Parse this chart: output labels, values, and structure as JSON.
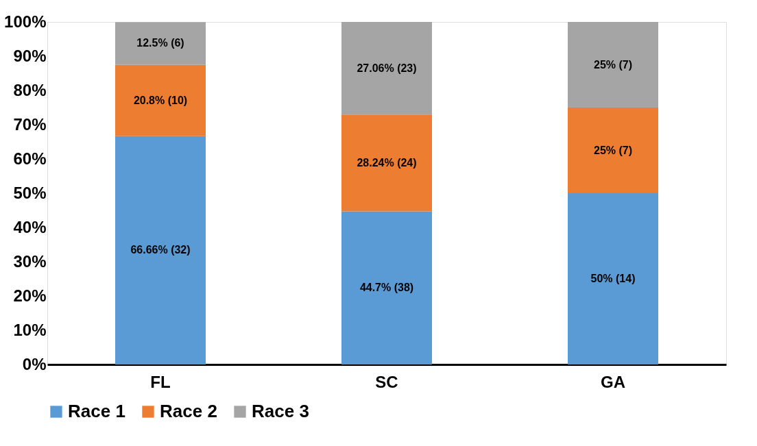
{
  "chart_data": {
    "type": "bar",
    "stacked": true,
    "categories": [
      "FL",
      "SC",
      "GA"
    ],
    "series": [
      {
        "name": "Race 1",
        "color": "#5b9bd5",
        "values": [
          66.66,
          44.7,
          50
        ],
        "value_labels": [
          "66.66% (32)",
          "44.7% (38)",
          "50% (14)"
        ]
      },
      {
        "name": "Race 2",
        "color": "#ed7d31",
        "values": [
          20.8,
          28.24,
          25
        ],
        "value_labels": [
          "20.8% (10)",
          "28.24% (24)",
          "25% (7)"
        ]
      },
      {
        "name": "Race 3",
        "color": "#a5a5a5",
        "values": [
          12.5,
          27.06,
          25
        ],
        "value_labels": [
          "12.5% (6)",
          "27.06% (23)",
          "25% (7)"
        ]
      }
    ],
    "ylim": [
      0,
      100
    ],
    "yticks": [
      {
        "value": 0,
        "label": "0%"
      },
      {
        "value": 10,
        "label": "10%"
      },
      {
        "value": 20,
        "label": "20%"
      },
      {
        "value": 30,
        "label": "30%"
      },
      {
        "value": 40,
        "label": "40%"
      },
      {
        "value": 50,
        "label": "50%"
      },
      {
        "value": 60,
        "label": "60%"
      },
      {
        "value": 70,
        "label": "70%"
      },
      {
        "value": 80,
        "label": "80%"
      },
      {
        "value": 90,
        "label": "90%"
      },
      {
        "value": 100,
        "label": "100%"
      }
    ],
    "grid": false,
    "legend": "bottom"
  }
}
